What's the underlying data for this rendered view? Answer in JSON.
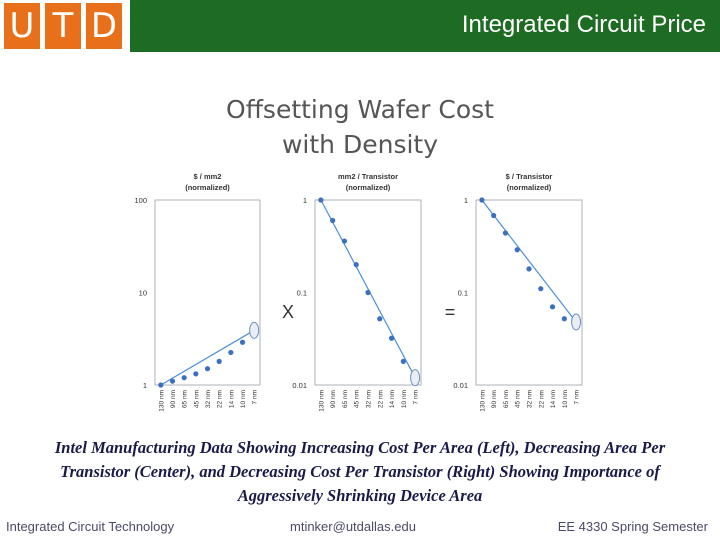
{
  "header": {
    "logo_letters": [
      "U",
      "T",
      "D"
    ],
    "title": "Integrated Circuit Price",
    "brand_orange": "#e8701a",
    "brand_green": "#1e6b23"
  },
  "slide_title_lines": [
    "Offsetting Wafer Cost",
    "with Density"
  ],
  "chart_data": [
    {
      "type": "scatter",
      "title_lines": [
        "$ / mm2",
        "(normalized)"
      ],
      "y_scale": "log",
      "ylim": [
        1,
        100
      ],
      "y_ticks": [
        "1",
        "10",
        "100"
      ],
      "categories": [
        "130 nm",
        "90 nm",
        "65 nm",
        "45 nm",
        "32 nm",
        "22 nm",
        "14 nm",
        "10 nm",
        "7 nm"
      ],
      "values": [
        1,
        1.1,
        1.2,
        1.32,
        1.5,
        1.8,
        2.25,
        2.9,
        3.9
      ],
      "projected_last": true
    },
    {
      "type": "scatter",
      "title_lines": [
        "mm2 / Transistor",
        "(normalized)"
      ],
      "y_scale": "log",
      "ylim": [
        0.01,
        1
      ],
      "y_ticks": [
        "0.01",
        "0.1",
        "1"
      ],
      "categories": [
        "130 nm",
        "90 nm",
        "65 nm",
        "45 nm",
        "32 nm",
        "22 nm",
        "14 nm",
        "10 nm",
        "7 nm"
      ],
      "values": [
        1,
        0.6,
        0.36,
        0.2,
        0.1,
        0.052,
        0.032,
        0.018,
        0.012
      ],
      "projected_last": true
    },
    {
      "type": "scatter",
      "title_lines": [
        "$ / Transistor",
        "(normalized)"
      ],
      "y_scale": "log",
      "ylim": [
        0.01,
        1
      ],
      "y_ticks": [
        "0.01",
        "0.1",
        "1"
      ],
      "categories": [
        "130 nm",
        "90 nm",
        "65 nm",
        "45 nm",
        "32 nm",
        "22 nm",
        "14 nm",
        "10 nm",
        "7 nm"
      ],
      "values": [
        1,
        0.68,
        0.44,
        0.29,
        0.18,
        0.11,
        0.07,
        0.052,
        0.048
      ],
      "projected_last": true
    }
  ],
  "operators": [
    "X",
    "="
  ],
  "caption": "Intel Manufacturing Data Showing Increasing Cost Per Area (Left), Decreasing Area Per Transistor (Center), and Decreasing Cost Per Transistor (Right) Showing Importance of Aggressively Shrinking Device Area",
  "footer": {
    "left": "Integrated Circuit Technology",
    "center": "mtinker@utdallas.edu",
    "right": "EE 4330 Spring Semester"
  }
}
